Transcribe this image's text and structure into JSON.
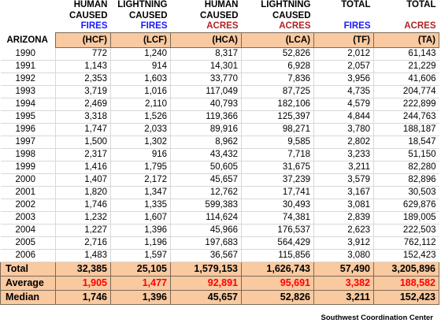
{
  "header": {
    "row1": [
      "HUMAN",
      "LIGHTNING",
      "HUMAN",
      "LIGHTNING",
      "TOTAL",
      "TOTAL"
    ],
    "row2": [
      "CAUSED",
      "CAUSED",
      "CAUSED",
      "CAUSED",
      "",
      ""
    ],
    "row3": [
      "FIRES",
      "FIRES",
      "ACRES",
      "ACRES",
      "FIRES",
      "ACRES"
    ]
  },
  "state": "ARIZONA",
  "abbreviations": [
    "(HCF)",
    "(LCF)",
    "(HCA)",
    "(LCA)",
    "(TF)",
    "(TA)"
  ],
  "rows": [
    {
      "year": "1990",
      "cells": [
        "772",
        "1,240",
        "8,317",
        "52,826",
        "2,012",
        "61,143"
      ]
    },
    {
      "year": "1991",
      "cells": [
        "1,143",
        "914",
        "14,301",
        "6,928",
        "2,057",
        "21,229"
      ]
    },
    {
      "year": "1992",
      "cells": [
        "2,353",
        "1,603",
        "33,770",
        "7,836",
        "3,956",
        "41,606"
      ]
    },
    {
      "year": "1993",
      "cells": [
        "3,719",
        "1,016",
        "117,049",
        "87,725",
        "4,735",
        "204,774"
      ]
    },
    {
      "year": "1994",
      "cells": [
        "2,469",
        "2,110",
        "40,793",
        "182,106",
        "4,579",
        "222,899"
      ]
    },
    {
      "year": "1995",
      "cells": [
        "3,318",
        "1,526",
        "119,366",
        "125,397",
        "4,844",
        "244,763"
      ]
    },
    {
      "year": "1996",
      "cells": [
        "1,747",
        "2,033",
        "89,916",
        "98,271",
        "3,780",
        "188,187"
      ]
    },
    {
      "year": "1997",
      "cells": [
        "1,500",
        "1,302",
        "8,962",
        "9,585",
        "2,802",
        "18,547"
      ]
    },
    {
      "year": "1998",
      "cells": [
        "2,317",
        "916",
        "43,432",
        "7,718",
        "3,233",
        "51,150"
      ]
    },
    {
      "year": "1999",
      "cells": [
        "1,416",
        "1,795",
        "50,605",
        "31,675",
        "3,211",
        "82,280"
      ]
    },
    {
      "year": "2000",
      "cells": [
        "1,407",
        "2,172",
        "45,657",
        "37,239",
        "3,579",
        "82,896"
      ]
    },
    {
      "year": "2001",
      "cells": [
        "1,820",
        "1,347",
        "12,762",
        "17,741",
        "3,167",
        "30,503"
      ]
    },
    {
      "year": "2002",
      "cells": [
        "1,746",
        "1,335",
        "599,383",
        "30,493",
        "3,081",
        "629,876"
      ]
    },
    {
      "year": "2003",
      "cells": [
        "1,232",
        "1,607",
        "114,624",
        "74,381",
        "2,839",
        "189,005"
      ]
    },
    {
      "year": "2004",
      "cells": [
        "1,227",
        "1,396",
        "45,966",
        "176,537",
        "2,623",
        "222,503"
      ]
    },
    {
      "year": "2005",
      "cells": [
        "2,716",
        "1,196",
        "197,683",
        "564,429",
        "3,912",
        "762,112"
      ]
    },
    {
      "year": "2006",
      "cells": [
        "1,483",
        "1,597",
        "36,567",
        "115,856",
        "3,080",
        "152,423"
      ]
    }
  ],
  "summary": [
    {
      "label": "Total",
      "cells": [
        "32,385",
        "25,105",
        "1,579,153",
        "1,626,743",
        "57,490",
        "3,205,896"
      ]
    },
    {
      "label": "Average",
      "cells": [
        "1,905",
        "1,477",
        "92,891",
        "95,691",
        "3,382",
        "188,582"
      ]
    },
    {
      "label": "Median",
      "cells": [
        "1,746",
        "1,396",
        "45,657",
        "52,826",
        "3,211",
        "152,423"
      ]
    }
  ],
  "credit": "Southwest Coordination Center",
  "colors": {
    "fires_label": "#1a1aff",
    "acres_label": "#b22222",
    "average_values": "#ff0000",
    "band_fill": "#f9c9a0"
  }
}
